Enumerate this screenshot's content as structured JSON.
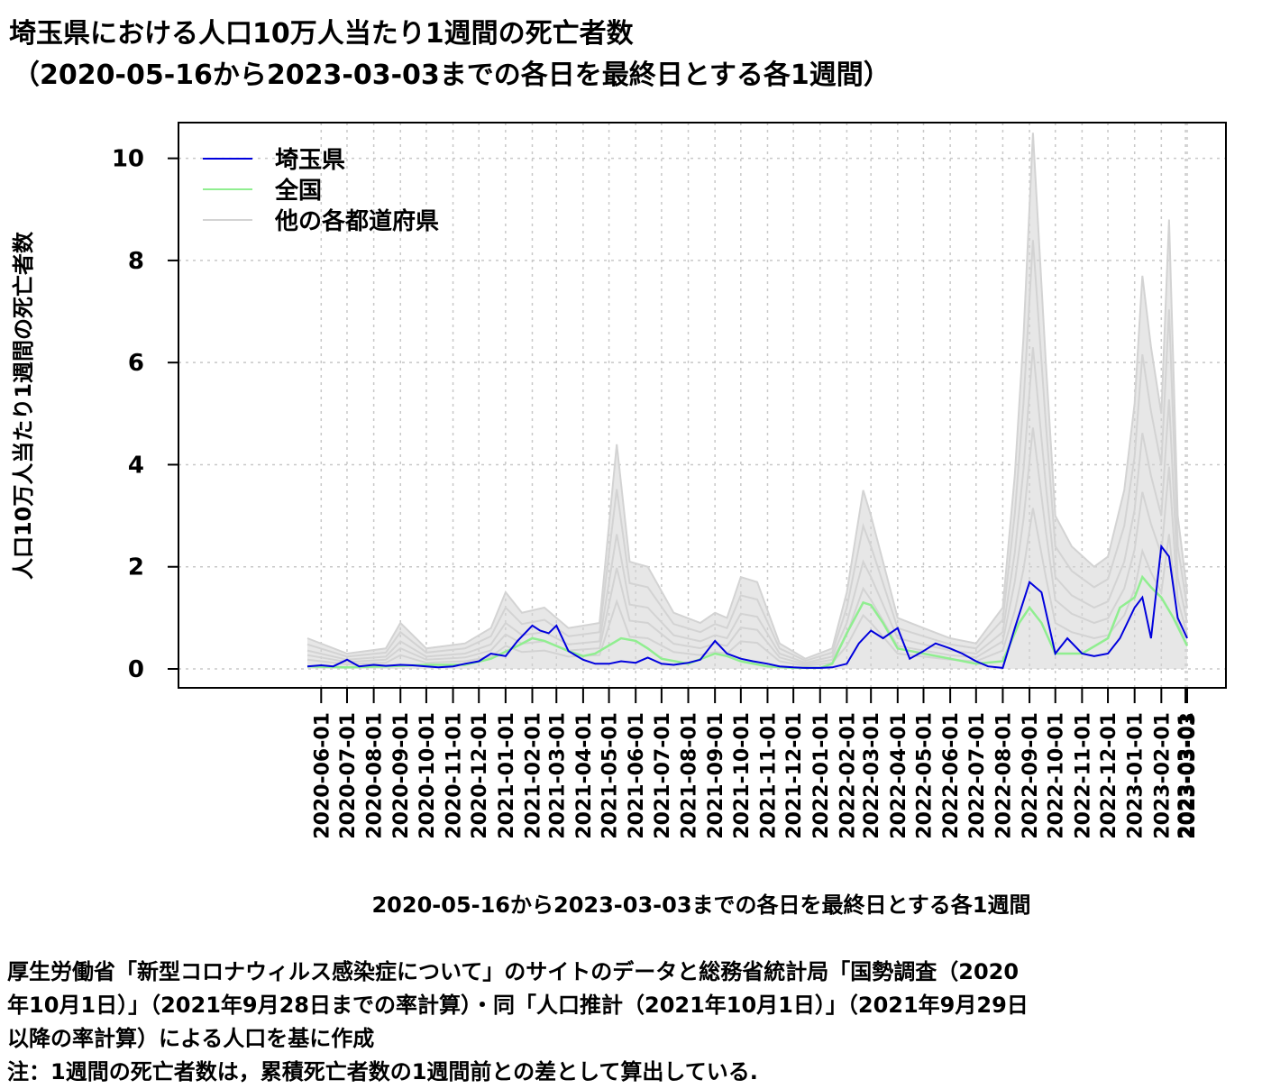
{
  "title_line1": "埼玉県における人口10万人当たり1週間の死亡者数",
  "title_line2": "（2020-05-16から2023-03-03までの各日を最終日とする各1週間）",
  "notes": [
    "厚生労働省「新型コロナウィルス感染症について」のサイトのデータと総務省統計局「国勢調査（2020",
    "年10月1日）」（2021年9月28日までの率計算）・同「人口推計（2021年10月1日）」（2021年9月29日",
    "以降の率計算）による人口を基に作成",
    "注：1週間の死亡者数は，累積死亡者数の1週間前との差として算出している."
  ],
  "colors": {
    "saitama": "#0000dd",
    "national": "#90ee90",
    "others": "#d3d3d3",
    "grid": "#c8c8c8"
  },
  "chart_data": {
    "type": "line",
    "xlabel": "2020-05-16から2023-03-03までの各日を最終日とする各1週間",
    "ylabel": "人口10万人当たり1週間の死亡者数",
    "ylim": [
      0,
      10.8
    ],
    "xlim": [
      "2020-05-16",
      "2023-03-03"
    ],
    "yticks": [
      0,
      2,
      4,
      6,
      8,
      10
    ],
    "x_tick_labels": [
      "2020-06-01",
      "2020-07-01",
      "2020-08-01",
      "2020-09-01",
      "2020-10-01",
      "2020-11-01",
      "2020-12-01",
      "2021-01-01",
      "2021-02-01",
      "2021-03-01",
      "2021-04-01",
      "2021-05-01",
      "2021-06-01",
      "2021-07-01",
      "2021-08-01",
      "2021-09-01",
      "2021-10-01",
      "2021-11-01",
      "2021-12-01",
      "2022-01-01",
      "2022-02-01",
      "2022-03-01",
      "2022-04-01",
      "2022-05-01",
      "2022-06-01",
      "2022-07-01",
      "2022-08-01",
      "2022-09-01",
      "2022-10-01",
      "2022-11-01",
      "2022-12-01",
      "2023-01-01",
      "2023-02-01",
      "2023-03-01",
      "2023-03-03"
    ],
    "grid": true,
    "legend_position": "top-left",
    "legend": [
      "埼玉県",
      "全国",
      "他の各都道府県"
    ],
    "series": [
      {
        "name": "埼玉県",
        "x": [
          "2020-05-16",
          "2020-06-01",
          "2020-06-15",
          "2020-07-01",
          "2020-07-15",
          "2020-08-01",
          "2020-08-15",
          "2020-09-01",
          "2020-09-15",
          "2020-10-01",
          "2020-10-15",
          "2020-11-01",
          "2020-11-15",
          "2020-12-01",
          "2020-12-15",
          "2021-01-01",
          "2021-01-15",
          "2021-02-01",
          "2021-02-10",
          "2021-02-20",
          "2021-03-01",
          "2021-03-15",
          "2021-04-01",
          "2021-04-15",
          "2021-05-01",
          "2021-05-15",
          "2021-06-01",
          "2021-06-15",
          "2021-07-01",
          "2021-07-15",
          "2021-08-01",
          "2021-08-15",
          "2021-09-01",
          "2021-09-15",
          "2021-10-01",
          "2021-10-15",
          "2021-11-01",
          "2021-11-15",
          "2021-12-01",
          "2021-12-15",
          "2022-01-01",
          "2022-01-15",
          "2022-02-01",
          "2022-02-15",
          "2022-03-01",
          "2022-03-15",
          "2022-04-01",
          "2022-04-15",
          "2022-05-01",
          "2022-05-15",
          "2022-06-01",
          "2022-06-15",
          "2022-07-01",
          "2022-07-15",
          "2022-08-01",
          "2022-08-15",
          "2022-09-01",
          "2022-09-15",
          "2022-10-01",
          "2022-10-15",
          "2022-11-01",
          "2022-11-15",
          "2022-12-01",
          "2022-12-15",
          "2023-01-01",
          "2023-01-10",
          "2023-01-20",
          "2023-02-01",
          "2023-02-10",
          "2023-02-20",
          "2023-03-03"
        ],
        "values": [
          0.05,
          0.07,
          0.05,
          0.18,
          0.05,
          0.08,
          0.06,
          0.08,
          0.07,
          0.05,
          0.03,
          0.05,
          0.1,
          0.15,
          0.3,
          0.25,
          0.55,
          0.85,
          0.75,
          0.7,
          0.85,
          0.35,
          0.18,
          0.1,
          0.1,
          0.15,
          0.12,
          0.22,
          0.1,
          0.08,
          0.12,
          0.18,
          0.55,
          0.3,
          0.2,
          0.15,
          0.1,
          0.05,
          0.03,
          0.02,
          0.02,
          0.03,
          0.1,
          0.5,
          0.75,
          0.6,
          0.8,
          0.2,
          0.35,
          0.5,
          0.4,
          0.3,
          0.15,
          0.05,
          0.02,
          0.8,
          1.7,
          1.5,
          0.3,
          0.6,
          0.3,
          0.25,
          0.3,
          0.6,
          1.2,
          1.4,
          0.6,
          2.4,
          2.2,
          1.0,
          0.6
        ]
      },
      {
        "name": "全国",
        "x": [
          "2020-05-16",
          "2020-07-01",
          "2020-08-15",
          "2020-10-01",
          "2020-11-15",
          "2020-12-15",
          "2021-01-15",
          "2021-02-01",
          "2021-02-15",
          "2021-03-15",
          "2021-04-01",
          "2021-04-15",
          "2021-05-15",
          "2021-06-01",
          "2021-06-15",
          "2021-07-01",
          "2021-08-01",
          "2021-09-01",
          "2021-09-15",
          "2021-10-01",
          "2021-11-01",
          "2021-12-01",
          "2022-01-01",
          "2022-01-15",
          "2022-02-01",
          "2022-02-20",
          "2022-03-01",
          "2022-03-15",
          "2022-04-01",
          "2022-05-01",
          "2022-06-01",
          "2022-07-01",
          "2022-08-01",
          "2022-08-20",
          "2022-09-01",
          "2022-09-15",
          "2022-10-01",
          "2022-11-01",
          "2022-12-01",
          "2022-12-15",
          "2023-01-01",
          "2023-01-10",
          "2023-01-20",
          "2023-02-01",
          "2023-02-15",
          "2023-03-03"
        ],
        "values": [
          0.05,
          0.03,
          0.05,
          0.08,
          0.08,
          0.2,
          0.45,
          0.6,
          0.55,
          0.35,
          0.25,
          0.3,
          0.6,
          0.55,
          0.4,
          0.2,
          0.1,
          0.3,
          0.25,
          0.15,
          0.05,
          0.02,
          0.02,
          0.1,
          0.7,
          1.3,
          1.25,
          0.9,
          0.4,
          0.3,
          0.2,
          0.1,
          0.15,
          0.9,
          1.2,
          0.9,
          0.3,
          0.3,
          0.6,
          1.2,
          1.4,
          1.8,
          1.6,
          1.4,
          1.0,
          0.45
        ]
      }
    ],
    "others_envelope": {
      "name": "他の各都道府県",
      "x": [
        "2020-05-16",
        "2020-07-01",
        "2020-08-15",
        "2020-09-01",
        "2020-10-01",
        "2020-11-15",
        "2020-12-15",
        "2021-01-01",
        "2021-01-20",
        "2021-02-15",
        "2021-03-15",
        "2021-04-20",
        "2021-05-10",
        "2021-05-25",
        "2021-06-15",
        "2021-07-15",
        "2021-08-15",
        "2021-09-01",
        "2021-09-15",
        "2021-10-01",
        "2021-10-20",
        "2021-11-15",
        "2021-12-15",
        "2022-01-15",
        "2022-02-01",
        "2022-02-20",
        "2022-03-01",
        "2022-03-15",
        "2022-04-01",
        "2022-05-01",
        "2022-06-01",
        "2022-07-01",
        "2022-08-01",
        "2022-08-15",
        "2022-08-25",
        "2022-09-05",
        "2022-09-20",
        "2022-10-01",
        "2022-10-20",
        "2022-11-15",
        "2022-12-01",
        "2022-12-20",
        "2023-01-01",
        "2023-01-10",
        "2023-01-20",
        "2023-02-01",
        "2023-02-10",
        "2023-02-20",
        "2023-03-03"
      ],
      "values": [
        0.6,
        0.3,
        0.4,
        0.9,
        0.4,
        0.5,
        0.8,
        1.5,
        1.1,
        1.2,
        0.8,
        0.9,
        4.4,
        2.1,
        2.0,
        1.1,
        0.9,
        1.1,
        1.0,
        1.8,
        1.7,
        0.5,
        0.2,
        0.4,
        1.5,
        3.5,
        3.0,
        2.1,
        1.0,
        0.8,
        0.6,
        0.5,
        1.2,
        3.8,
        6.5,
        10.5,
        6.0,
        3.0,
        2.4,
        2.0,
        2.2,
        3.5,
        5.2,
        7.7,
        6.3,
        5.0,
        8.8,
        3.0,
        1.5
      ]
    }
  }
}
